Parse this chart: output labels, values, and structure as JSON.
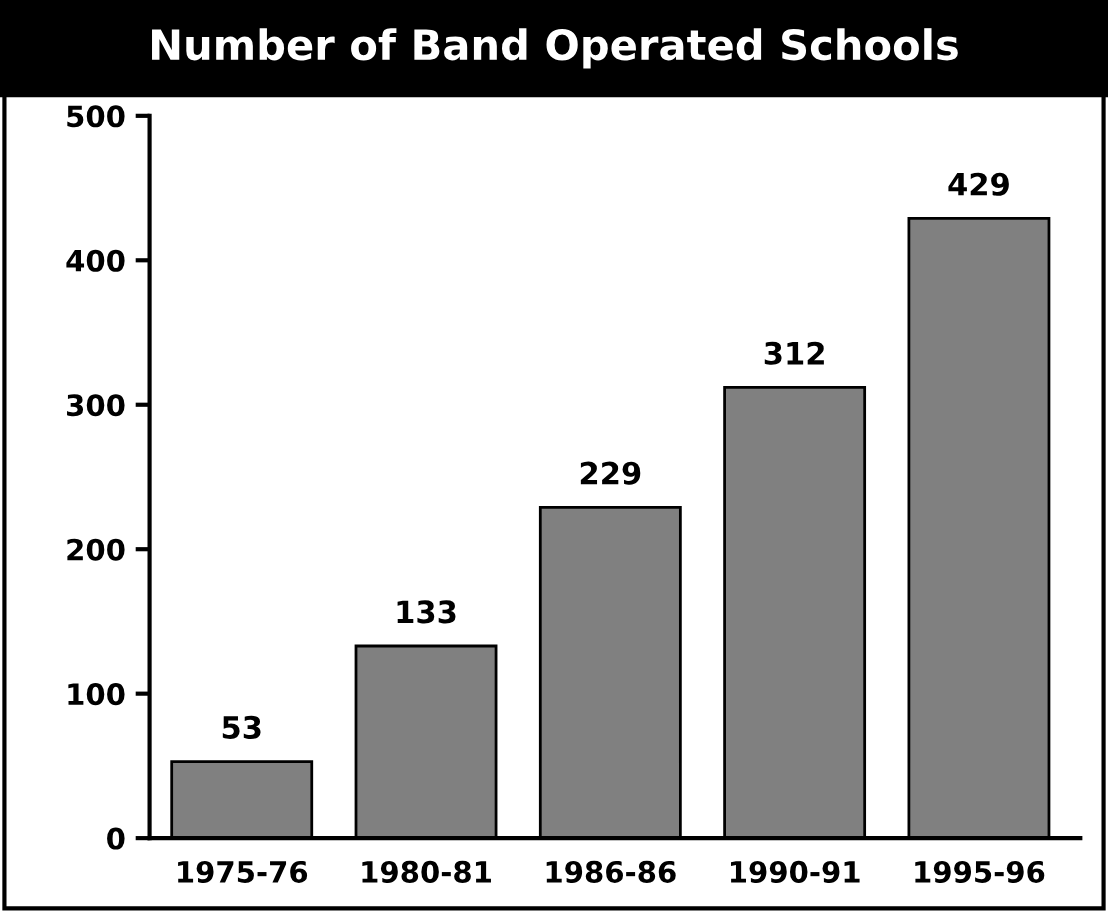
{
  "chart_data": {
    "type": "bar",
    "title": "Number of Band Operated Schools",
    "categories": [
      "1975-76",
      "1980-81",
      "1986-86",
      "1990-91",
      "1995-96"
    ],
    "values": [
      53,
      133,
      229,
      312,
      429
    ],
    "color": "#808080",
    "ylim": [
      0,
      500
    ],
    "yticks": [
      0,
      100,
      200,
      300,
      400,
      500
    ],
    "data_labels": true,
    "grid": false,
    "legend": false
  }
}
